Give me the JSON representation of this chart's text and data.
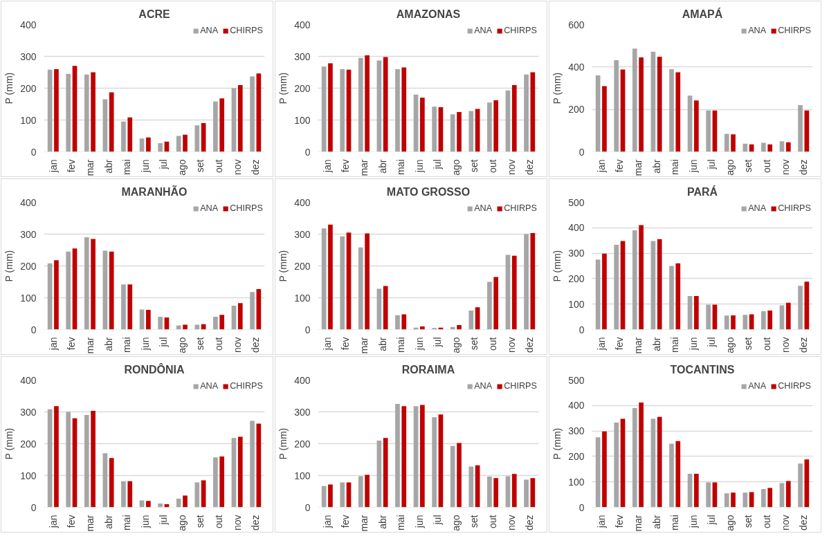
{
  "chart_data": [
    {
      "type": "bar",
      "title": "ACRE",
      "ylabel": "P (mm)",
      "categories": [
        "jan",
        "fev",
        "mar",
        "abr",
        "mai",
        "jun",
        "jul",
        "ago",
        "set",
        "out",
        "nov",
        "dez"
      ],
      "ylim": [
        0,
        400
      ],
      "yticks": [
        0,
        100,
        200,
        300,
        400
      ],
      "grid": "y",
      "legend": "top right",
      "series": [
        {
          "name": "ANA",
          "color": "#a6a6a6",
          "values": [
            258,
            245,
            243,
            165,
            95,
            42,
            27,
            50,
            83,
            158,
            200,
            237
          ]
        },
        {
          "name": "CHIRPS",
          "color": "#c00000",
          "values": [
            260,
            270,
            250,
            187,
            108,
            45,
            32,
            54,
            90,
            168,
            210,
            246
          ]
        }
      ]
    },
    {
      "type": "bar",
      "title": "AMAZONAS",
      "ylabel": "P (mm)",
      "categories": [
        "jan",
        "fev",
        "mar",
        "abr",
        "mai",
        "jun",
        "jul",
        "ago",
        "set",
        "out",
        "nov",
        "dez"
      ],
      "ylim": [
        0,
        400
      ],
      "yticks": [
        0,
        100,
        200,
        300,
        400
      ],
      "grid": "y",
      "legend": "top right",
      "series": [
        {
          "name": "ANA",
          "color": "#a6a6a6",
          "values": [
            268,
            260,
            295,
            287,
            260,
            180,
            142,
            118,
            128,
            155,
            193,
            243
          ]
        },
        {
          "name": "CHIRPS",
          "color": "#c00000",
          "values": [
            278,
            258,
            303,
            298,
            265,
            170,
            140,
            125,
            135,
            162,
            210,
            250
          ]
        }
      ]
    },
    {
      "type": "bar",
      "title": "AMAPÁ",
      "ylabel": "P (mm)",
      "categories": [
        "jan",
        "fev",
        "mar",
        "abr",
        "mai",
        "jun",
        "jul",
        "ago",
        "set",
        "out",
        "nov",
        "dez"
      ],
      "ylim": [
        0,
        600
      ],
      "yticks": [
        0,
        200,
        400,
        600
      ],
      "grid": "y",
      "legend": "top right",
      "series": [
        {
          "name": "ANA",
          "color": "#a6a6a6",
          "values": [
            360,
            432,
            487,
            472,
            390,
            265,
            195,
            85,
            38,
            42,
            50,
            220
          ]
        },
        {
          "name": "CHIRPS",
          "color": "#c00000",
          "values": [
            310,
            388,
            445,
            448,
            375,
            242,
            195,
            82,
            35,
            35,
            45,
            195
          ]
        }
      ]
    },
    {
      "type": "bar",
      "title": "MARANHÃO",
      "ylabel": "P (mm)",
      "categories": [
        "jan",
        "fev",
        "mar",
        "abr",
        "mai",
        "jun",
        "jul",
        "ago",
        "set",
        "out",
        "nov",
        "dez"
      ],
      "ylim": [
        0,
        400
      ],
      "yticks": [
        0,
        100,
        200,
        300,
        400
      ],
      "grid": "y",
      "legend": "top right",
      "series": [
        {
          "name": "ANA",
          "color": "#a6a6a6",
          "values": [
            208,
            245,
            290,
            248,
            142,
            63,
            40,
            13,
            15,
            40,
            75,
            118
          ]
        },
        {
          "name": "CHIRPS",
          "color": "#c00000",
          "values": [
            218,
            255,
            285,
            245,
            142,
            62,
            38,
            15,
            17,
            46,
            83,
            127
          ]
        }
      ]
    },
    {
      "type": "bar",
      "title": "MATO GROSSO",
      "ylabel": "P (mm)",
      "categories": [
        "jan",
        "fev",
        "mar",
        "abr",
        "mai",
        "jun",
        "jul",
        "ago",
        "set",
        "out",
        "nov",
        "dez"
      ],
      "ylim": [
        0,
        400
      ],
      "yticks": [
        0,
        100,
        200,
        300,
        400
      ],
      "grid": "y",
      "legend": "top right",
      "series": [
        {
          "name": "ANA",
          "color": "#a6a6a6",
          "values": [
            318,
            293,
            258,
            128,
            45,
            6,
            5,
            8,
            60,
            150,
            235,
            300
          ]
        },
        {
          "name": "CHIRPS",
          "color": "#c00000",
          "values": [
            330,
            305,
            302,
            137,
            48,
            10,
            6,
            14,
            70,
            165,
            232,
            303
          ]
        }
      ]
    },
    {
      "type": "bar",
      "title": "PARÁ",
      "ylabel": "P (mm)",
      "categories": [
        "jan",
        "fev",
        "mar",
        "abr",
        "mai",
        "jun",
        "jul",
        "ago",
        "set",
        "out",
        "nov",
        "dez"
      ],
      "ylim": [
        0,
        500
      ],
      "yticks": [
        0,
        100,
        200,
        300,
        400,
        500
      ],
      "grid": "y",
      "legend": "top right",
      "series": [
        {
          "name": "ANA",
          "color": "#a6a6a6",
          "values": [
            275,
            333,
            390,
            348,
            250,
            132,
            98,
            55,
            58,
            72,
            95,
            172
          ]
        },
        {
          "name": "CHIRPS",
          "color": "#c00000",
          "values": [
            298,
            348,
            410,
            355,
            260,
            132,
            98,
            56,
            60,
            75,
            105,
            188
          ]
        }
      ]
    },
    {
      "type": "bar",
      "title": "RONDÔNIA",
      "ylabel": "P (mm)",
      "categories": [
        "jan",
        "fev",
        "mar",
        "abr",
        "mai",
        "jun",
        "jul",
        "ago",
        "set",
        "out",
        "nov",
        "dez"
      ],
      "ylim": [
        0,
        400
      ],
      "yticks": [
        0,
        100,
        200,
        300,
        400
      ],
      "grid": "y",
      "legend": "top right",
      "series": [
        {
          "name": "ANA",
          "color": "#a6a6a6",
          "values": [
            308,
            300,
            290,
            170,
            82,
            22,
            12,
            27,
            78,
            157,
            218,
            272
          ]
        },
        {
          "name": "CHIRPS",
          "color": "#c00000",
          "values": [
            318,
            280,
            303,
            155,
            82,
            20,
            10,
            37,
            85,
            160,
            222,
            263
          ]
        }
      ]
    },
    {
      "type": "bar",
      "title": "RORAIMA",
      "ylabel": "P (mm)",
      "categories": [
        "jan",
        "fev",
        "mar",
        "abr",
        "mai",
        "jun",
        "jul",
        "ago",
        "set",
        "out",
        "nov",
        "dez"
      ],
      "ylim": [
        0,
        400
      ],
      "yticks": [
        0,
        100,
        200,
        300,
        400
      ],
      "grid": "y",
      "legend": "top right",
      "series": [
        {
          "name": "ANA",
          "color": "#a6a6a6",
          "values": [
            67,
            78,
            98,
            210,
            325,
            318,
            283,
            193,
            128,
            97,
            98,
            87
          ]
        },
        {
          "name": "CHIRPS",
          "color": "#c00000",
          "values": [
            72,
            78,
            102,
            218,
            318,
            322,
            292,
            202,
            132,
            92,
            105,
            92
          ]
        }
      ]
    },
    {
      "type": "bar",
      "title": "TOCANTINS",
      "ylabel": "P (mm)",
      "categories": [
        "jan",
        "fev",
        "mar",
        "abr",
        "mai",
        "jun",
        "jul",
        "ago",
        "set",
        "out",
        "nov",
        "dez"
      ],
      "ylim": [
        0,
        500
      ],
      "yticks": [
        0,
        100,
        200,
        300,
        400,
        500
      ],
      "grid": "y",
      "legend": "top right",
      "series": [
        {
          "name": "ANA",
          "color": "#a6a6a6",
          "values": [
            275,
            333,
            390,
            348,
            250,
            132,
            98,
            55,
            58,
            72,
            95,
            172
          ]
        },
        {
          "name": "CHIRPS",
          "color": "#c00000",
          "values": [
            298,
            348,
            412,
            355,
            260,
            132,
            98,
            58,
            60,
            76,
            103,
            188
          ]
        }
      ]
    }
  ]
}
